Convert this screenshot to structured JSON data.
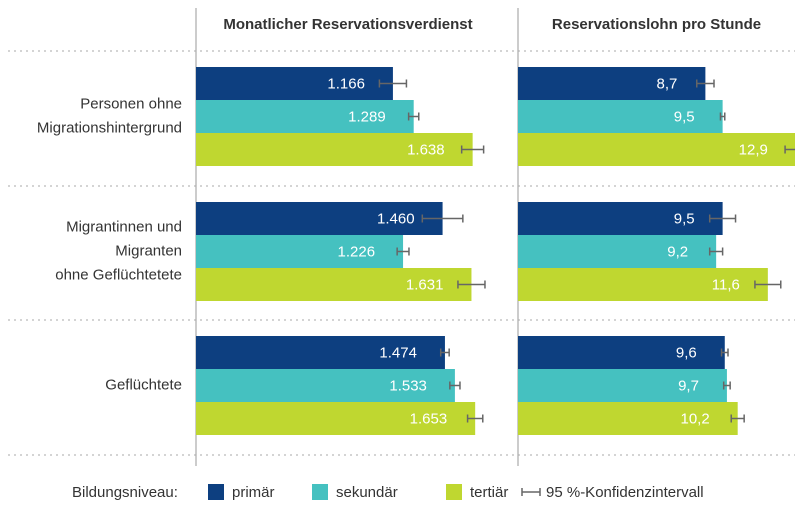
{
  "legend_title": "Bildungsniveau:",
  "ci_label": "95 %-Konfidenzintervall",
  "chart_data": [
    {
      "type": "bar",
      "orientation": "horizontal",
      "title": "Monatlicher Reservationsverdienst",
      "categories": [
        [
          "Personen ohne",
          "Migrationshintergrund"
        ],
        [
          "Migrantinnen und",
          "Migranten",
          "ohne Geflüchtetete"
        ],
        [
          "Geflüchtete"
        ]
      ],
      "xlim": [
        0,
        1800
      ],
      "series": [
        {
          "name": "primär",
          "color": "#0d3f80",
          "values": [
            1166,
            1460,
            1474
          ],
          "value_labels": [
            "1.166",
            "1.460",
            "1.474"
          ],
          "errors": [
            80,
            120,
            25
          ]
        },
        {
          "name": "sekundär",
          "color": "#45c1c0",
          "values": [
            1289,
            1226,
            1533
          ],
          "value_labels": [
            "1.289",
            "1.226",
            "1.533"
          ],
          "errors": [
            30,
            35,
            30
          ]
        },
        {
          "name": "tertiär",
          "color": "#bfd730",
          "values": [
            1638,
            1631,
            1653
          ],
          "value_labels": [
            "1.638",
            "1.631",
            "1.653"
          ],
          "errors": [
            65,
            80,
            45
          ]
        }
      ]
    },
    {
      "type": "bar",
      "orientation": "horizontal",
      "title": "Reservationslohn pro Stunde",
      "xlim": [
        0,
        13
      ],
      "series": [
        {
          "color": "#0d3f80",
          "values": [
            8.7,
            9.5,
            9.6
          ],
          "value_labels": [
            "8,7",
            "9,5",
            "9,6"
          ],
          "errors": [
            0.4,
            0.6,
            0.15
          ]
        },
        {
          "color": "#45c1c0",
          "values": [
            9.5,
            9.2,
            9.7
          ],
          "value_labels": [
            "9,5",
            "9,2",
            "9,7"
          ],
          "errors": [
            0.1,
            0.3,
            0.15
          ]
        },
        {
          "color": "#bfd730",
          "values": [
            12.9,
            11.6,
            10.2
          ],
          "value_labels": [
            "12,9",
            "11,6",
            "10,2"
          ],
          "errors": [
            0.5,
            0.6,
            0.3
          ]
        }
      ]
    }
  ]
}
